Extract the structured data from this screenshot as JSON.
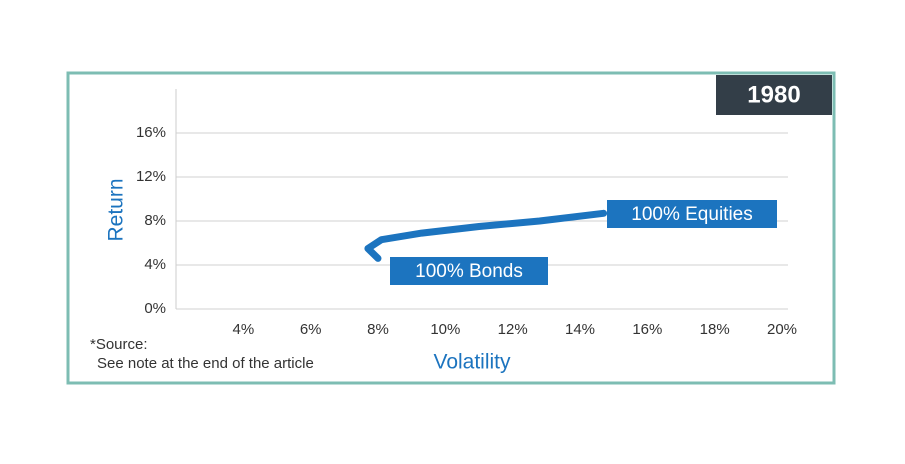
{
  "chart_data": {
    "type": "line",
    "badge": "1980",
    "xlabel": "Volatility",
    "ylabel": "Return",
    "note": [
      "*Source:",
      "See note at the end of the article"
    ],
    "annotations": [
      {
        "text": "100% Equities"
      },
      {
        "text": "100% Bonds"
      }
    ],
    "x": [
      8.0,
      7.7,
      8.1,
      9.3,
      11.0,
      12.8,
      14.7
    ],
    "series": [
      {
        "color": "#1c74bf",
        "values": [
          4.6,
          5.5,
          6.3,
          6.9,
          7.5,
          8.0,
          8.7
        ]
      }
    ],
    "xlim": [
      2,
      20
    ],
    "ylim": [
      0,
      20
    ],
    "xticks": [
      {
        "value": 4,
        "label": "4%"
      },
      {
        "value": 6,
        "label": "6%"
      },
      {
        "value": 8,
        "label": "8%"
      },
      {
        "value": 10,
        "label": "10%"
      },
      {
        "value": 12,
        "label": "12%"
      },
      {
        "value": 14,
        "label": "14%"
      },
      {
        "value": 16,
        "label": "16%"
      },
      {
        "value": 18,
        "label": "18%"
      },
      {
        "value": 20,
        "label": "20%"
      }
    ],
    "yticks": [
      {
        "value": 0,
        "label": "0%"
      },
      {
        "value": 4,
        "label": "4%"
      },
      {
        "value": 8,
        "label": "8%"
      },
      {
        "value": 12,
        "label": "12%"
      },
      {
        "value": 16,
        "label": "16%"
      }
    ],
    "grid": true
  }
}
